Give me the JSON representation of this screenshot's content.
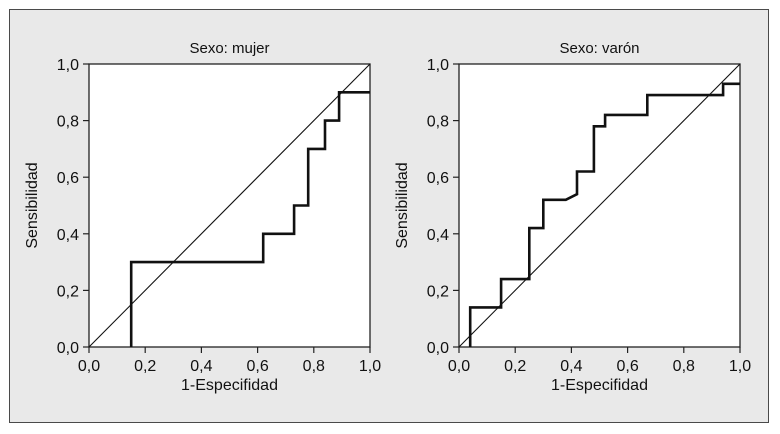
{
  "chart_data": [
    {
      "type": "line",
      "title": "Sexo: mujer",
      "xlabel": "1-Especifidad",
      "ylabel": "Sensibilidad",
      "xlim": [
        0,
        1
      ],
      "ylim": [
        0,
        1
      ],
      "xticks": [
        "0,0",
        "0,2",
        "0,4",
        "0,6",
        "0,8",
        "1,0"
      ],
      "yticks": [
        "0,0",
        "0,2",
        "0,4",
        "0,6",
        "0,8",
        "1,0"
      ],
      "grid": false,
      "series": [
        {
          "role": "roc-curve",
          "x": [
            0.15,
            0.15,
            0.62,
            0.62,
            0.73,
            0.73,
            0.78,
            0.78,
            0.84,
            0.84,
            0.89,
            0.89,
            1.0
          ],
          "y": [
            0.0,
            0.3,
            0.3,
            0.4,
            0.4,
            0.5,
            0.5,
            0.7,
            0.7,
            0.8,
            0.8,
            0.9,
            0.9
          ]
        },
        {
          "role": "reference-diagonal",
          "x": [
            0,
            1
          ],
          "y": [
            0,
            1
          ]
        }
      ]
    },
    {
      "type": "line",
      "title": "Sexo: varón",
      "xlabel": "1-Especifidad",
      "ylabel": "Sensibilidad",
      "xlim": [
        0,
        1
      ],
      "ylim": [
        0,
        1
      ],
      "xticks": [
        "0,0",
        "0,2",
        "0,4",
        "0,6",
        "0,8",
        "1,0"
      ],
      "yticks": [
        "0,0",
        "0,2",
        "0,4",
        "0,6",
        "0,8",
        "1,0"
      ],
      "grid": false,
      "series": [
        {
          "role": "roc-curve",
          "x": [
            0.04,
            0.04,
            0.15,
            0.15,
            0.25,
            0.25,
            0.3,
            0.3,
            0.38,
            0.42,
            0.42,
            0.48,
            0.48,
            0.52,
            0.52,
            0.67,
            0.67,
            0.94,
            0.94,
            1.0
          ],
          "y": [
            0.0,
            0.14,
            0.14,
            0.24,
            0.24,
            0.42,
            0.42,
            0.52,
            0.52,
            0.54,
            0.62,
            0.62,
            0.78,
            0.78,
            0.82,
            0.82,
            0.89,
            0.89,
            0.93,
            0.93
          ]
        },
        {
          "role": "reference-diagonal",
          "x": [
            0,
            1
          ],
          "y": [
            0,
            1
          ]
        }
      ]
    }
  ]
}
